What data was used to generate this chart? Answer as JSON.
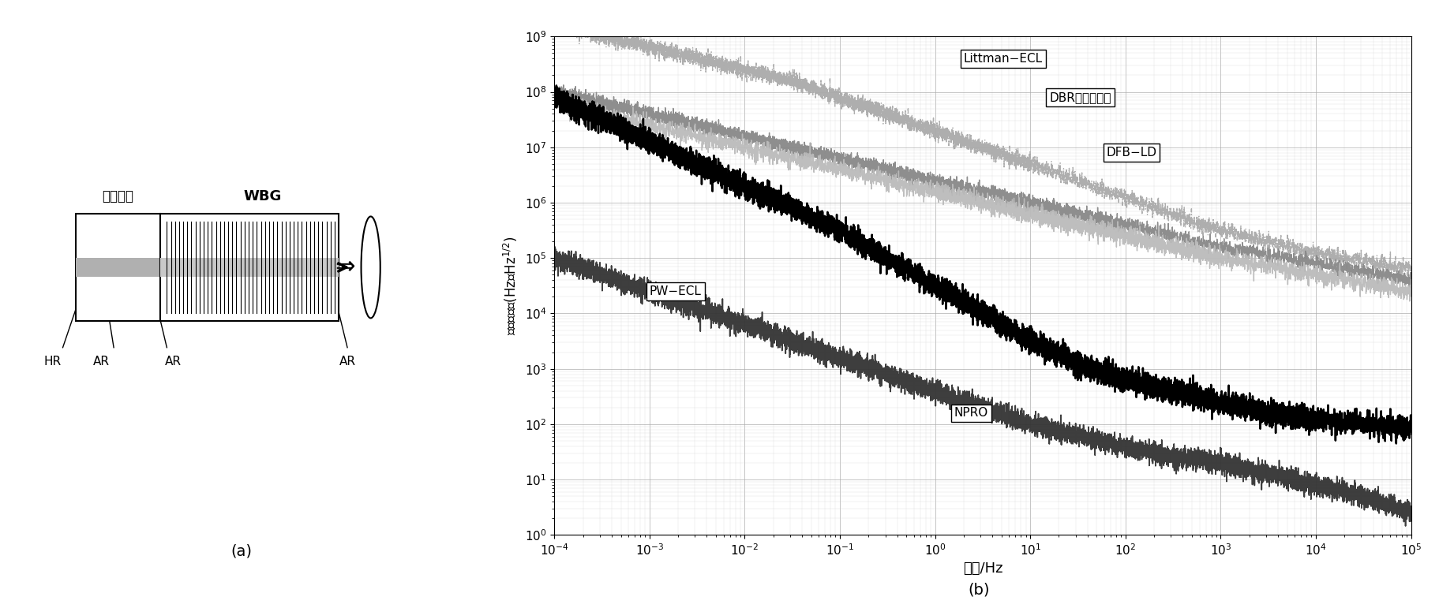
{
  "fig_width": 18.24,
  "fig_height": 7.71,
  "bg_color": "#ffffff",
  "panel_a": {
    "gain_chip_label": "增益芯片",
    "wbg_label": "WBG",
    "hr_label": "HR",
    "ar_labels": [
      "AR",
      "AR",
      "AR"
    ],
    "caption": "(a)"
  },
  "panel_b": {
    "xlabel": "频率/Hz",
    "ylabel": "频率噪声／(Hz／Hz^{1/2})",
    "xmin": -4,
    "xmax": 5,
    "ymin": 0,
    "ymax": 9,
    "caption": "(b)",
    "grid_color": "#999999",
    "annotation_box_style": "square",
    "curves": {
      "Littman-ECL": {
        "color": "#aaaaaa",
        "style": "-."
      },
      "DBR": {
        "color": "#999999",
        "style": "-"
      },
      "DFB-LD": {
        "color": "#bbbbbb",
        "style": "-"
      },
      "PW-ECL": {
        "color": "#000000",
        "style": "-"
      },
      "NPRO": {
        "color": "#555555",
        "style": "-"
      }
    }
  }
}
